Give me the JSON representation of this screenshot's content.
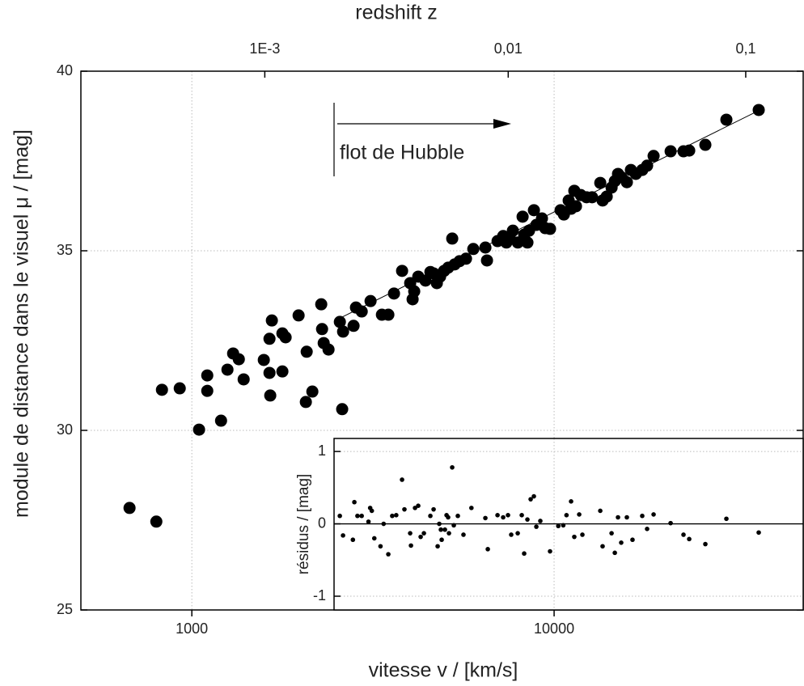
{
  "chart_data": [
    {
      "type": "scatter",
      "xlabel": "vitesse v / [km/s]",
      "ylabel": "module de distance dans le visuel μ / [mag]",
      "x2label": "redshift z",
      "annotation": "flot de Hubble",
      "xscale": "log",
      "grid": true,
      "color": "#000000",
      "xlim": [
        494,
        48700
      ],
      "ylim": [
        25,
        40
      ],
      "xticks": [
        1000,
        10000
      ],
      "yticks": [
        25,
        30,
        35,
        40
      ],
      "x2ticks": [
        {
          "value": 1590,
          "label": "1E-3"
        },
        {
          "value": 7470,
          "label": "0,01"
        },
        {
          "value": 33800,
          "label": "0,1"
        }
      ],
      "x": [
        673,
        798,
        827,
        926,
        1047,
        1103,
        1103,
        1204,
        1254,
        1300,
        1348,
        1390,
        1580,
        1638,
        1646,
        1638,
        1663,
        1778,
        1778,
        1815,
        1971,
        2064,
        2075,
        2151,
        2276,
        2288,
        2312,
        2384,
        2562,
        2600,
        2615,
        2795,
        2838,
        2944,
        3114,
        3347,
        3487,
        3614,
        3805,
        4006,
        4068,
        4110,
        4217,
        4416,
        4555,
        4650,
        4746,
        4845,
        4970,
        5100,
        5233,
        5313,
        5481,
        5712,
        5983,
        6461,
        6527,
        6980,
        7235,
        7385,
        7538,
        7694,
        7937,
        8185,
        8268,
        8440,
        8526,
        8795,
        8933,
        9256,
        9450,
        9745,
        10420,
        10640,
        10970,
        11140,
        11370,
        11490,
        11850,
        12290,
        12730,
        13410,
        13610,
        13970,
        14410,
        14710,
        15010,
        15320,
        15880,
        16290,
        16810,
        17510,
        18060,
        18820,
        20970,
        22760,
        23600,
        26150,
        29890,
        36710
      ],
      "values": [
        27.84,
        27.46,
        31.13,
        31.17,
        30.02,
        31.53,
        31.1,
        30.27,
        31.69,
        32.14,
        31.98,
        31.42,
        31.96,
        31.6,
        30.97,
        32.55,
        33.06,
        31.64,
        32.7,
        32.59,
        33.2,
        30.79,
        32.19,
        31.08,
        33.51,
        32.82,
        32.43,
        32.25,
        33.02,
        30.59,
        32.75,
        32.91,
        33.42,
        33.31,
        33.6,
        33.22,
        33.22,
        33.81,
        34.44,
        34.1,
        33.65,
        33.87,
        34.28,
        34.17,
        34.41,
        34.37,
        34.1,
        34.28,
        34.44,
        34.53,
        35.34,
        34.62,
        34.71,
        34.78,
        35.05,
        35.09,
        34.73,
        35.27,
        35.41,
        35.23,
        35.36,
        35.56,
        35.23,
        35.95,
        35.45,
        35.23,
        35.56,
        36.13,
        35.72,
        35.9,
        35.63,
        35.61,
        36.13,
        36.01,
        36.4,
        36.17,
        36.67,
        36.24,
        36.55,
        36.49,
        36.49,
        36.89,
        36.4,
        36.51,
        36.76,
        36.94,
        37.14,
        37.05,
        36.91,
        37.25,
        37.14,
        37.25,
        37.37,
        37.64,
        37.77,
        37.77,
        37.79,
        37.95,
        38.65,
        38.92
      ],
      "fit": {
        "x": [
          2500,
          37000
        ],
        "values": [
          33.07,
          38.92
        ]
      }
    },
    {
      "type": "scatter",
      "ylabel": "résidus / [mag]",
      "xscale": "log",
      "grid": true,
      "color": "#000000",
      "xlim": [
        2470,
        48700
      ],
      "ylim": [
        -1.19,
        1.18
      ],
      "xticks": [
        10000
      ],
      "yticks": [
        -1,
        0,
        1
      ],
      "reference_line": 0,
      "x": [
        2562,
        2615,
        2784,
        2810,
        2866,
        2944,
        3074,
        3107,
        3140,
        3190,
        3318,
        3385,
        3487,
        3575,
        3667,
        3805,
        3863,
        4006,
        4027,
        4132,
        4217,
        4283,
        4372,
        4555,
        4650,
        4771,
        4820,
        4870,
        4895,
        4997,
        5049,
        5100,
        5127,
        5233,
        5287,
        5424,
        5622,
        5913,
        6461,
        6562,
        6980,
        7235,
        7461,
        7615,
        7937,
        8143,
        8268,
        8440,
        8616,
        8795,
        8933,
        9162,
        9745,
        10270,
        10600,
        10820,
        11140,
        11370,
        11730,
        11970,
        13410,
        13610,
        14410,
        14710,
        15010,
        15320,
        15880,
        16460,
        17510,
        18060,
        18820,
        20970,
        22760,
        23600,
        26150,
        29890,
        36710
      ],
      "values": [
        0.11,
        -0.16,
        -0.22,
        0.3,
        0.11,
        0.11,
        0.03,
        0.22,
        0.18,
        -0.2,
        -0.31,
        0.0,
        -0.42,
        0.11,
        0.12,
        0.61,
        0.2,
        -0.13,
        -0.3,
        0.22,
        0.25,
        -0.18,
        -0.13,
        0.11,
        0.2,
        -0.31,
        0.0,
        -0.08,
        -0.22,
        -0.08,
        0.12,
        0.09,
        -0.13,
        0.78,
        -0.02,
        0.11,
        -0.15,
        0.22,
        0.08,
        -0.35,
        0.12,
        0.09,
        0.12,
        -0.15,
        -0.13,
        0.12,
        -0.41,
        0.06,
        0.34,
        0.38,
        -0.04,
        0.04,
        -0.38,
        -0.03,
        -0.02,
        0.12,
        0.31,
        -0.18,
        0.13,
        -0.15,
        0.18,
        -0.31,
        -0.13,
        -0.4,
        0.09,
        -0.26,
        0.09,
        -0.22,
        0.11,
        -0.07,
        0.13,
        0.01,
        -0.15,
        -0.21,
        -0.28,
        0.07,
        -0.12
      ]
    }
  ]
}
